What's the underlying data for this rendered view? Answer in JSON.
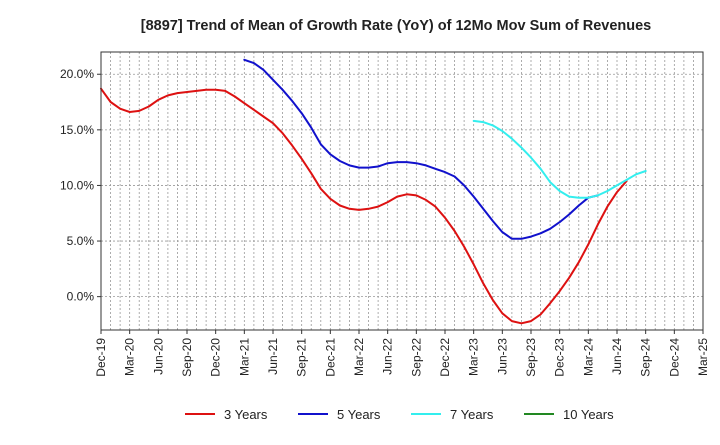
{
  "chart_data": {
    "type": "line",
    "title": "[8897]  Trend of Mean of Growth Rate (YoY) of 12Mo Mov Sum of Revenues",
    "xlabel": "",
    "ylabel": "",
    "ylim": [
      -3.0,
      22.0
    ],
    "y_ticks": [
      0,
      5,
      10,
      15,
      20
    ],
    "y_tick_labels": [
      "0.0%",
      "5.0%",
      "10.0%",
      "15.0%",
      "20.0%"
    ],
    "x_tick_labels": [
      "Dec-19",
      "Mar-20",
      "Jun-20",
      "Sep-20",
      "Dec-20",
      "Mar-21",
      "Jun-21",
      "Sep-21",
      "Dec-21",
      "Mar-22",
      "Jun-22",
      "Sep-22",
      "Dec-22",
      "Mar-23",
      "Jun-23",
      "Sep-23",
      "Dec-23",
      "Mar-24",
      "Jun-24",
      "Sep-24",
      "Dec-24",
      "Mar-25"
    ],
    "x_month_count": 64,
    "grid": true,
    "legend_position": "bottom",
    "series": [
      {
        "name": "3 Years",
        "color": "#dd1111",
        "start_month": 0,
        "values": [
          18.7,
          17.5,
          16.9,
          16.6,
          16.7,
          17.1,
          17.7,
          18.1,
          18.3,
          18.4,
          18.5,
          18.6,
          18.6,
          18.5,
          18.0,
          17.4,
          16.8,
          16.2,
          15.6,
          14.7,
          13.6,
          12.4,
          11.1,
          9.7,
          8.8,
          8.2,
          7.9,
          7.8,
          7.9,
          8.1,
          8.5,
          9.0,
          9.2,
          9.1,
          8.7,
          8.1,
          7.1,
          5.9,
          4.5,
          2.9,
          1.2,
          -0.3,
          -1.5,
          -2.2,
          -2.4,
          -2.2,
          -1.6,
          -0.6,
          0.5,
          1.7,
          3.1,
          4.7,
          6.5,
          8.1,
          9.4,
          10.4
        ]
      },
      {
        "name": "5 Years",
        "color": "#1111cc",
        "start_month": 15,
        "values": [
          21.3,
          21.0,
          20.4,
          19.5,
          18.6,
          17.6,
          16.5,
          15.2,
          13.7,
          12.8,
          12.2,
          11.8,
          11.6,
          11.6,
          11.7,
          12.0,
          12.1,
          12.1,
          12.0,
          11.8,
          11.5,
          11.2,
          10.8,
          10.0,
          9.0,
          7.9,
          6.8,
          5.8,
          5.2,
          5.2,
          5.4,
          5.7,
          6.1,
          6.7,
          7.4,
          8.2,
          8.9,
          9.1
        ]
      },
      {
        "name": "7 Years",
        "color": "#33eeee",
        "start_month": 39,
        "values": [
          15.8,
          15.7,
          15.4,
          14.9,
          14.2,
          13.4,
          12.5,
          11.5,
          10.3,
          9.5,
          9.0,
          8.9,
          8.9,
          9.1,
          9.5,
          10.0,
          10.5,
          11.0,
          11.3
        ]
      },
      {
        "name": "10 Years",
        "color": "#228822",
        "start_month": 0,
        "values": []
      }
    ]
  }
}
